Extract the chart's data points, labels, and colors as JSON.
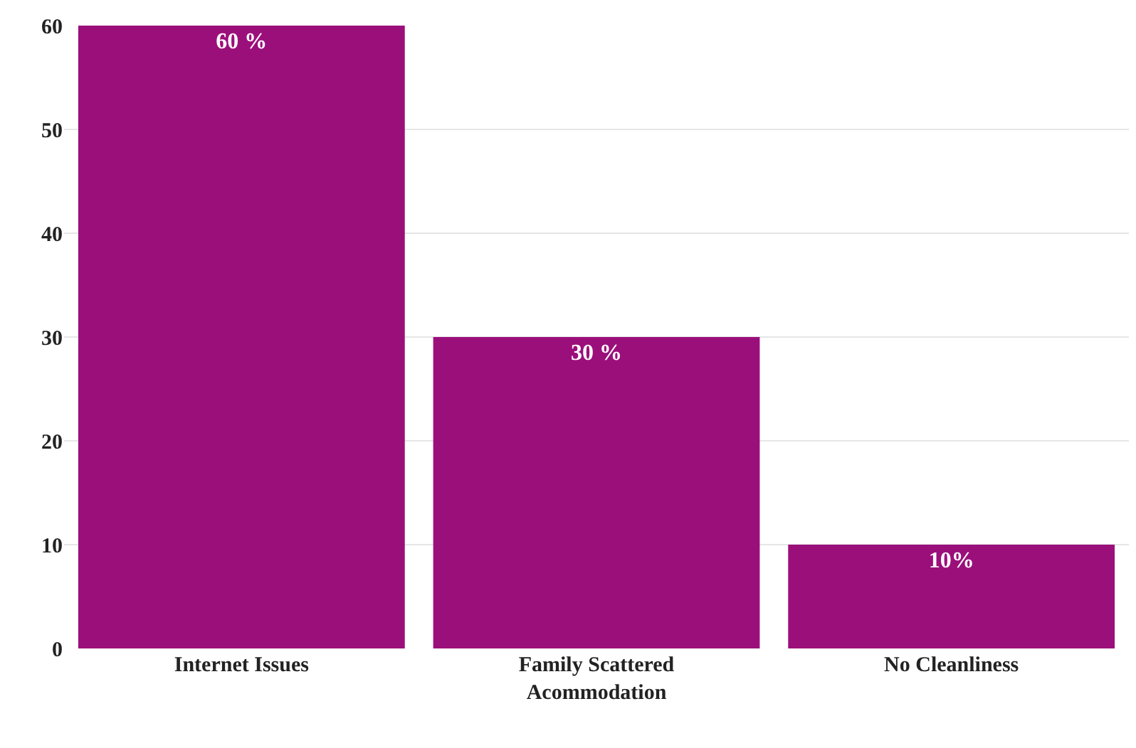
{
  "chart_data": {
    "type": "bar",
    "categories": [
      "Internet Issues",
      "Family Scattered Acommodation",
      "No Cleanliness"
    ],
    "values": [
      60,
      30,
      10
    ],
    "value_labels": [
      "60 %",
      "30 %",
      "10%"
    ],
    "color": "#9b0f7b",
    "ylim": [
      0,
      60
    ],
    "yticks": [
      0,
      10,
      20,
      30,
      40,
      50,
      60
    ],
    "grid": "y",
    "legend": false
  }
}
